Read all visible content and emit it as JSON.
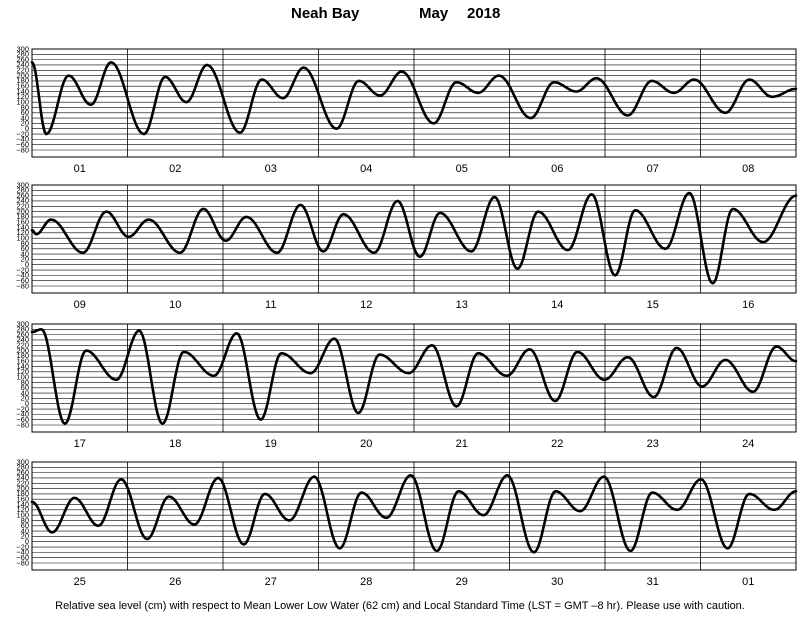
{
  "title": {
    "station": "Neah Bay",
    "month": "May",
    "year": "2018"
  },
  "footer": "Relative sea level (cm) with respect to Mean Lower Low Water (62 cm) and Local Standard Time (LST = GMT –8 hr). Please use with caution.",
  "chart_data": {
    "type": "line",
    "title": "Neah Bay May 2018",
    "ylabel": "",
    "xlabel": "",
    "ylim": [
      -80,
      300
    ],
    "yticks": [
      300,
      280,
      260,
      240,
      220,
      200,
      180,
      160,
      140,
      120,
      100,
      80,
      60,
      40,
      20,
      0,
      -20,
      -40,
      -60,
      -80
    ],
    "ytick_labels": [
      "300",
      "280",
      "260",
      "240",
      "220",
      "200",
      "180",
      "160",
      "140",
      "120",
      "100",
      "80",
      "60",
      "40",
      "20",
      "0",
      "−20",
      "−40",
      "−60",
      "−80"
    ],
    "grid": true,
    "color": "#000000",
    "panels": [
      {
        "days": [
          "01",
          "02",
          "03",
          "04",
          "05",
          "06",
          "07",
          "08"
        ],
        "points": [
          [
            0,
            250
          ],
          [
            2.7,
            -20
          ],
          [
            6.9,
            200
          ],
          [
            11.1,
            90
          ],
          [
            14.9,
            250
          ],
          [
            21.1,
            -20
          ],
          [
            25.1,
            195
          ],
          [
            29.1,
            100
          ],
          [
            33.0,
            240
          ],
          [
            39.2,
            -15
          ],
          [
            43.3,
            185
          ],
          [
            47.3,
            115
          ],
          [
            51.2,
            230
          ],
          [
            57.4,
            0
          ],
          [
            61.6,
            180
          ],
          [
            65.6,
            125
          ],
          [
            69.7,
            215
          ],
          [
            75.7,
            20
          ],
          [
            80.0,
            175
          ],
          [
            84.1,
            135
          ],
          [
            88.0,
            200
          ],
          [
            94.0,
            40
          ],
          [
            98.4,
            175
          ],
          [
            102.6,
            140
          ],
          [
            106.4,
            190
          ],
          [
            112.3,
            50
          ],
          [
            116.8,
            180
          ],
          [
            121.0,
            135
          ],
          [
            124.8,
            185
          ],
          [
            130.7,
            60
          ],
          [
            135.2,
            185
          ],
          [
            139.5,
            120
          ],
          [
            144,
            150
          ]
        ]
      },
      {
        "days": [
          "09",
          "10",
          "11",
          "12",
          "13",
          "14",
          "15",
          "16"
        ],
        "points": [
          [
            0,
            130
          ],
          [
            0.8,
            115
          ],
          [
            3.6,
            170
          ],
          [
            9.6,
            45
          ],
          [
            14.0,
            200
          ],
          [
            18.2,
            105
          ],
          [
            22.0,
            170
          ],
          [
            27.9,
            45
          ],
          [
            32.3,
            210
          ],
          [
            36.5,
            90
          ],
          [
            40.4,
            180
          ],
          [
            46.2,
            45
          ],
          [
            50.6,
            225
          ],
          [
            54.9,
            50
          ],
          [
            58.7,
            190
          ],
          [
            64.5,
            45
          ],
          [
            68.9,
            240
          ],
          [
            73.1,
            30
          ],
          [
            76.9,
            195
          ],
          [
            82.8,
            50
          ],
          [
            87.2,
            255
          ],
          [
            91.5,
            -15
          ],
          [
            95.4,
            200
          ],
          [
            101.0,
            55
          ],
          [
            105.5,
            265
          ],
          [
            109.9,
            -40
          ],
          [
            113.7,
            205
          ],
          [
            119.4,
            60
          ],
          [
            123.9,
            270
          ],
          [
            128.3,
            -70
          ],
          [
            132.1,
            210
          ],
          [
            137.8,
            85
          ],
          [
            144,
            260
          ]
        ]
      },
      {
        "days": [
          "17",
          "18",
          "19",
          "20",
          "21",
          "22",
          "23",
          "24"
        ],
        "points": [
          [
            0,
            270
          ],
          [
            1.8,
            280
          ],
          [
            6.2,
            -75
          ],
          [
            10.2,
            200
          ],
          [
            15.9,
            90
          ],
          [
            20.2,
            275
          ],
          [
            24.6,
            -75
          ],
          [
            28.6,
            195
          ],
          [
            34.3,
            105
          ],
          [
            38.6,
            265
          ],
          [
            43.1,
            -60
          ],
          [
            47.0,
            190
          ],
          [
            52.5,
            115
          ],
          [
            57.0,
            245
          ],
          [
            61.5,
            -35
          ],
          [
            65.5,
            185
          ],
          [
            71.0,
            115
          ],
          [
            75.4,
            220
          ],
          [
            80.0,
            -10
          ],
          [
            84.1,
            190
          ],
          [
            89.5,
            105
          ],
          [
            93.8,
            205
          ],
          [
            98.6,
            10
          ],
          [
            102.8,
            195
          ],
          [
            107.9,
            90
          ],
          [
            112.3,
            175
          ],
          [
            117.2,
            25
          ],
          [
            121.5,
            210
          ],
          [
            126.3,
            65
          ],
          [
            130.7,
            165
          ],
          [
            135.9,
            45
          ],
          [
            140.3,
            215
          ],
          [
            144,
            160
          ]
        ]
      },
      {
        "days": [
          "25",
          "26",
          "27",
          "28",
          "29",
          "30",
          "31",
          "01"
        ],
        "points": [
          [
            0,
            150
          ],
          [
            3.8,
            35
          ],
          [
            8.0,
            165
          ],
          [
            12.5,
            60
          ],
          [
            16.8,
            235
          ],
          [
            21.7,
            10
          ],
          [
            25.8,
            170
          ],
          [
            30.6,
            65
          ],
          [
            35.1,
            240
          ],
          [
            39.9,
            -10
          ],
          [
            43.9,
            180
          ],
          [
            48.5,
            80
          ],
          [
            53.2,
            245
          ],
          [
            58.0,
            -25
          ],
          [
            62.1,
            185
          ],
          [
            66.8,
            90
          ],
          [
            71.4,
            250
          ],
          [
            76.3,
            -35
          ],
          [
            80.4,
            190
          ],
          [
            85.1,
            100
          ],
          [
            89.6,
            250
          ],
          [
            94.6,
            -40
          ],
          [
            98.7,
            190
          ],
          [
            103.3,
            115
          ],
          [
            107.8,
            245
          ],
          [
            112.8,
            -35
          ],
          [
            116.9,
            185
          ],
          [
            121.6,
            120
          ],
          [
            126.1,
            235
          ],
          [
            131.1,
            -25
          ],
          [
            135.2,
            180
          ],
          [
            139.9,
            120
          ],
          [
            144,
            190
          ]
        ]
      }
    ]
  }
}
